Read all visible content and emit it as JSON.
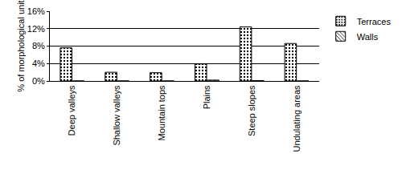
{
  "chart_data": {
    "type": "bar",
    "y_label": "% of morphological unit",
    "categories": [
      "Deep valleys",
      "Shallow valleys",
      "Mountain tops",
      "Plains",
      "Steep slopes",
      "Undulating areas"
    ],
    "series": [
      {
        "name": "Terraces",
        "color": "#000000",
        "marker": "dotted",
        "values": [
          7.6,
          2.0,
          1.9,
          3.9,
          12.4,
          8.6
        ]
      },
      {
        "name": "Walls",
        "color": "#000000",
        "marker": "hatched",
        "values": [
          0,
          0,
          0,
          0.2,
          0.1,
          0
        ]
      }
    ],
    "ylim": [
      0,
      16
    ],
    "yticks": [
      {
        "value": 0,
        "label": "0%"
      },
      {
        "value": 4,
        "label": "4%"
      },
      {
        "value": 8,
        "label": "8%"
      },
      {
        "value": 12,
        "label": "12%"
      },
      {
        "value": 16,
        "label": "16%"
      }
    ],
    "grid": true,
    "legend": "right"
  }
}
